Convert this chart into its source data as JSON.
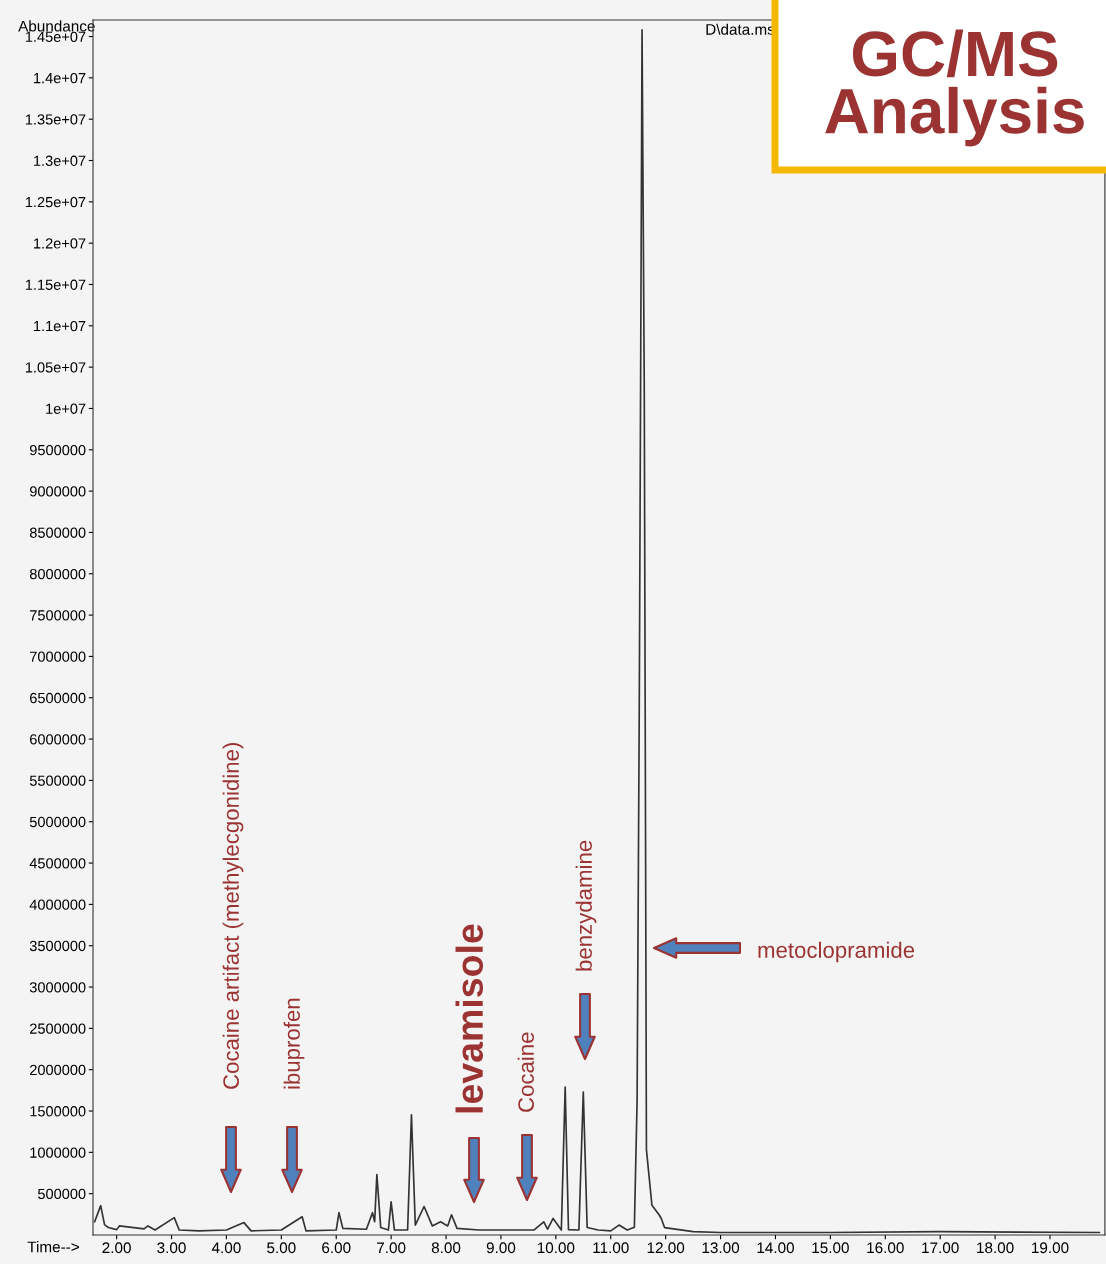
{
  "chart_data": {
    "type": "line",
    "title": "GC/MS\nAnalysis",
    "xlabel": "Time-->",
    "ylabel": "Abundance",
    "x": [
      1.6,
      1.71,
      1.78,
      1.85,
      2.0,
      2.05,
      2.5,
      2.57,
      2.7,
      3.05,
      3.14,
      3.5,
      4.0,
      4.32,
      4.45,
      5.0,
      5.38,
      5.45,
      6.0,
      6.05,
      6.12,
      6.55,
      6.66,
      6.7,
      6.74,
      6.81,
      6.95,
      7.0,
      7.06,
      7.3,
      7.37,
      7.44,
      7.6,
      7.75,
      7.9,
      8.03,
      8.1,
      8.2,
      8.6,
      9.0,
      9.6,
      9.78,
      9.85,
      9.95,
      10.1,
      10.17,
      10.23,
      10.42,
      10.5,
      10.57,
      10.77,
      11.0,
      11.15,
      11.3,
      11.43,
      11.48,
      11.52,
      11.57,
      11.61,
      11.65,
      11.75,
      11.88,
      11.92,
      11.98,
      12.5,
      13.0,
      15.0,
      17.0,
      19.9
    ],
    "values": [
      160000,
      355000,
      125000,
      90000,
      65000,
      110000,
      75000,
      110000,
      60000,
      210000,
      60000,
      50000,
      60000,
      150000,
      50000,
      60000,
      220000,
      50000,
      60000,
      270000,
      80000,
      70000,
      270000,
      160000,
      730000,
      90000,
      60000,
      400000,
      60000,
      60000,
      1455000,
      120000,
      345000,
      110000,
      160000,
      110000,
      245000,
      80000,
      60000,
      60000,
      60000,
      160000,
      70000,
      200000,
      60000,
      1790000,
      65000,
      60000,
      1730000,
      90000,
      60000,
      50000,
      120000,
      60000,
      95000,
      1630000,
      6460000,
      14580000,
      10310000,
      1030000,
      360000,
      245000,
      200000,
      90000,
      40000,
      30000,
      30000,
      40000,
      30000
    ],
    "color": "#333333",
    "xlim": [
      1.57,
      20.0
    ],
    "ylim": [
      0,
      14700000
    ],
    "xticks": [
      {
        "value": 2,
        "label": "2.00"
      },
      {
        "value": 3,
        "label": "3.00"
      },
      {
        "value": 4,
        "label": "4.00"
      },
      {
        "value": 5,
        "label": "5.00"
      },
      {
        "value": 6,
        "label": "6.00"
      },
      {
        "value": 7,
        "label": "7.00"
      },
      {
        "value": 8,
        "label": "8.00"
      },
      {
        "value": 9,
        "label": "9.00"
      },
      {
        "value": 10,
        "label": "10.00"
      },
      {
        "value": 11,
        "label": "11.00"
      },
      {
        "value": 12,
        "label": "12.00"
      },
      {
        "value": 13,
        "label": "13.00"
      },
      {
        "value": 14,
        "label": "14.00"
      },
      {
        "value": 15,
        "label": "15.00"
      },
      {
        "value": 16,
        "label": "16.00"
      },
      {
        "value": 17,
        "label": "17.00"
      },
      {
        "value": 18,
        "label": "18.00"
      },
      {
        "value": 19,
        "label": "19.00"
      }
    ],
    "yticks": [
      500000,
      1000000,
      1500000,
      2000000,
      2500000,
      3000000,
      3500000,
      4000000,
      4500000,
      5000000,
      5500000,
      6000000,
      6500000,
      7000000,
      7500000,
      8000000,
      8500000,
      9000000,
      9500000,
      {
        "value": 10000000,
        "label": "1e+07"
      },
      {
        "value": 10500000,
        "label": "1.05e+07"
      },
      {
        "value": 11000000,
        "label": "1.1e+07"
      },
      {
        "value": 11500000,
        "label": "1.15e+07"
      },
      {
        "value": 12000000,
        "label": "1.2e+07"
      },
      {
        "value": 12500000,
        "label": "1.25e+07"
      },
      {
        "value": 13000000,
        "label": "1.3e+07"
      },
      {
        "value": 13500000,
        "label": "1.35e+07"
      },
      {
        "value": 14000000,
        "label": "1.4e+07"
      },
      {
        "value": 14500000,
        "label": "1.45e+07"
      }
    ],
    "grid": false,
    "marker": "none",
    "line_style": "solid",
    "annotations": [
      "D\\data.ms",
      "Cocaine artifact (methylecgonidine)",
      "ibuprofen",
      "levamisole",
      "Cocaine",
      "benzydamine",
      "metoclopramide"
    ]
  }
}
